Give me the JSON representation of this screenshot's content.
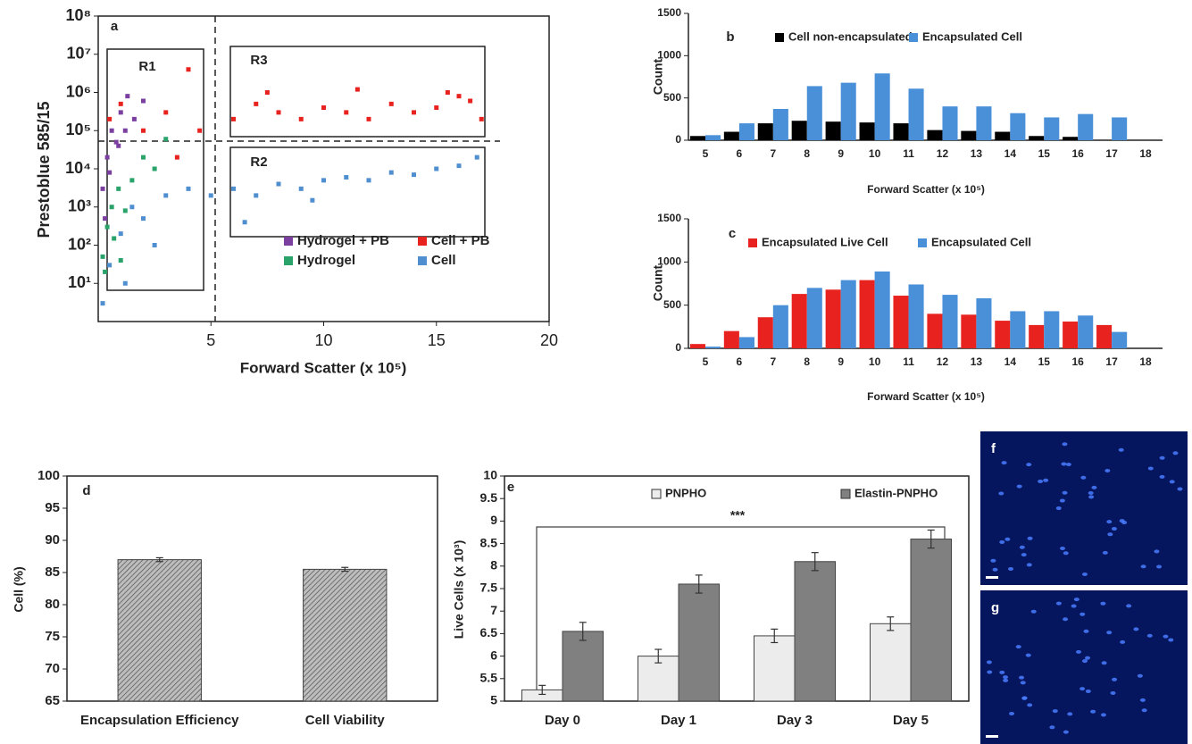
{
  "chart_data": [
    {
      "type": "scatter",
      "panel_label": "a",
      "ylabel": "Prestoblue 585/15",
      "xlabel": "Forward Scatter (x 10⁵)",
      "log_y": true,
      "xlim": [
        0,
        20
      ],
      "ylim": [
        1,
        100000000
      ],
      "xticks": [
        5,
        10,
        15,
        20
      ],
      "yticks": [
        {
          "value": 10,
          "label": "10¹"
        },
        {
          "value": 100,
          "label": "10²"
        },
        {
          "value": 1000,
          "label": "10³"
        },
        {
          "value": 10000,
          "label": "10⁴"
        },
        {
          "value": 100000,
          "label": "10⁵"
        },
        {
          "value": 1000000,
          "label": "10⁶"
        },
        {
          "value": 10000000,
          "label": "10⁷"
        },
        {
          "value": 100000000,
          "label": "10⁸"
        }
      ],
      "annotations": [
        "R1",
        "R3",
        "R2"
      ],
      "series": [
        {
          "name": "Hydrogel + PB",
          "color": "#7b3fa0",
          "x": [
            0.2,
            0.4,
            0.6,
            0.8,
            1.0,
            1.3,
            1.6,
            2.0,
            0.3,
            0.5,
            0.9,
            1.2
          ],
          "values": [
            3000,
            20000,
            100000,
            50000,
            300000,
            800000,
            200000,
            600000,
            500,
            8000,
            40000,
            100000
          ]
        },
        {
          "name": "Cell + PB",
          "color": "#e8231f",
          "x": [
            0.5,
            1,
            2,
            3,
            4,
            4.5,
            6,
            7,
            8,
            9,
            10,
            11,
            12,
            13,
            14,
            15,
            16,
            16.5,
            17,
            3.5,
            7.5,
            11.5,
            15.5
          ],
          "values": [
            200000,
            500000,
            100000,
            300000,
            4000000,
            100000,
            200000,
            500000,
            300000,
            200000,
            400000,
            300000,
            200000,
            500000,
            300000,
            400000,
            800000,
            600000,
            200000,
            20000,
            1000000,
            1200000,
            1000000
          ]
        },
        {
          "name": "Hydrogel",
          "color": "#2aa36b",
          "x": [
            0.2,
            0.4,
            0.6,
            0.9,
            1.2,
            1.5,
            2,
            2.5,
            0.3,
            0.7,
            3,
            1
          ],
          "values": [
            50,
            300,
            1000,
            3000,
            800,
            5000,
            20000,
            10000,
            20,
            150,
            60000,
            40
          ]
        },
        {
          "name": "Cell",
          "color": "#4f8fcf",
          "x": [
            0.2,
            0.5,
            1,
            1.5,
            2,
            3,
            4,
            5,
            6,
            7,
            8,
            9,
            10,
            11,
            12,
            13,
            14,
            15,
            16,
            16.8,
            1.2,
            2.5,
            6.5,
            9.5
          ],
          "values": [
            3,
            30,
            200,
            1000,
            500,
            2000,
            3000,
            2000,
            3000,
            2000,
            4000,
            3000,
            5000,
            6000,
            5000,
            8000,
            7000,
            10000,
            12000,
            20000,
            10,
            100,
            400,
            1500
          ]
        }
      ]
    },
    {
      "type": "bar",
      "panel_label": "b",
      "ylabel": "Count",
      "xlabel": "Forward Scatter (x 10⁵)",
      "categories": [
        "5",
        "6",
        "7",
        "8",
        "9",
        "10",
        "11",
        "12",
        "13",
        "14",
        "15",
        "16",
        "17",
        "18"
      ],
      "ylim": [
        0,
        1500
      ],
      "yticks": [
        0,
        500,
        1000,
        1500
      ],
      "series": [
        {
          "name": "Cell non-encapsulated",
          "color": "#000000",
          "values": [
            50,
            100,
            200,
            230,
            220,
            210,
            200,
            120,
            110,
            100,
            50,
            40,
            null,
            null
          ]
        },
        {
          "name": "Encapsulated Cell",
          "color": "#4a90d9",
          "values": [
            60,
            200,
            370,
            640,
            680,
            790,
            610,
            400,
            400,
            320,
            270,
            310,
            270,
            null
          ]
        }
      ]
    },
    {
      "type": "bar",
      "panel_label": "c",
      "ylabel": "Count",
      "xlabel": "Forward Scatter (x 10⁵)",
      "categories": [
        "5",
        "6",
        "7",
        "8",
        "9",
        "10",
        "11",
        "12",
        "13",
        "14",
        "15",
        "16",
        "17",
        "18"
      ],
      "ylim": [
        0,
        1500
      ],
      "yticks": [
        0,
        500,
        1000,
        1500
      ],
      "series": [
        {
          "name": "Encapsulated Live Cell",
          "color": "#e8231f",
          "values": [
            50,
            200,
            360,
            630,
            680,
            790,
            610,
            400,
            390,
            320,
            270,
            310,
            270,
            null
          ]
        },
        {
          "name": "Encapsulated Cell",
          "color": "#4a90d9",
          "values": [
            20,
            130,
            500,
            700,
            790,
            890,
            740,
            620,
            580,
            430,
            430,
            380,
            190,
            null
          ]
        }
      ]
    },
    {
      "type": "bar",
      "panel_label": "d",
      "ylabel": "Cell (%)",
      "categories": [
        "Encapsulation Efficiency",
        "Cell Viability"
      ],
      "ylim": [
        65,
        100
      ],
      "yticks": [
        65,
        70,
        75,
        80,
        85,
        90,
        95,
        100
      ],
      "series": [
        {
          "color": "#a0a0a0",
          "values": [
            87,
            85.5
          ],
          "errors": [
            0.3,
            0.3
          ]
        }
      ]
    },
    {
      "type": "bar",
      "panel_label": "e",
      "ylabel": "Live Cells (x 10³)",
      "annotation": "***",
      "categories": [
        "Day 0",
        "Day 1",
        "Day 3",
        "Day 5"
      ],
      "ylim": [
        5,
        10
      ],
      "yticks": [
        5,
        5.5,
        6,
        6.5,
        7,
        7.5,
        8,
        8.5,
        9,
        9.5,
        10
      ],
      "series": [
        {
          "name": "PNPHO",
          "color": "#ececec",
          "values": [
            5.25,
            6.0,
            6.45,
            6.72
          ],
          "errors": [
            0.1,
            0.15,
            0.15,
            0.15
          ]
        },
        {
          "name": "Elastin-PNPHO",
          "color": "#808080",
          "values": [
            6.55,
            7.6,
            8.1,
            8.6
          ],
          "errors": [
            0.2,
            0.2,
            0.2,
            0.2
          ]
        }
      ]
    }
  ],
  "images": [
    {
      "label": "f"
    },
    {
      "label": "g"
    }
  ]
}
